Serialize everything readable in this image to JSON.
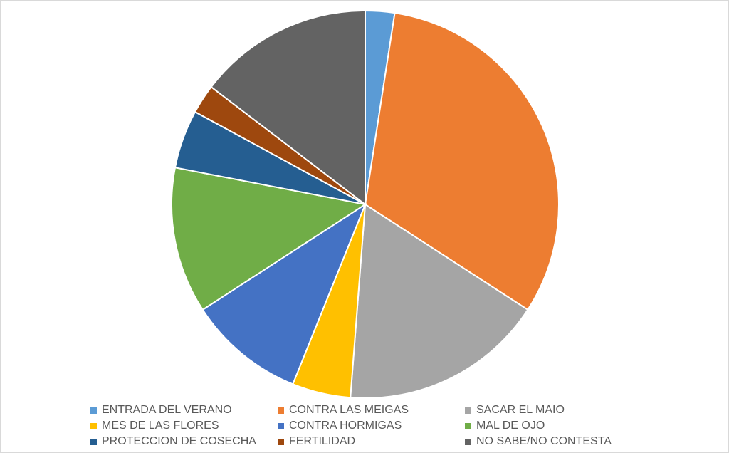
{
  "chart_data": {
    "type": "pie",
    "title": "",
    "legend_position": "bottom",
    "categories": [
      "ENTRADA DEL VERANO",
      "CONTRA LAS MEIGAS",
      "SACAR EL MAIO",
      "MES DE LAS FLORES",
      "CONTRA HORMIGAS",
      "MAL DE OJO",
      "PROTECCION DE COSECHA",
      "FERTILIDAD",
      "NO SABE/NO CONTESTA"
    ],
    "values": [
      2.5,
      32.5,
      17.5,
      5,
      10,
      12.5,
      5,
      2.5,
      15
    ],
    "colors": [
      "#5b9bd5",
      "#ed7d31",
      "#a5a5a5",
      "#ffc000",
      "#4472c4",
      "#70ad47",
      "#255e91",
      "#9e480e",
      "#636363"
    ]
  }
}
